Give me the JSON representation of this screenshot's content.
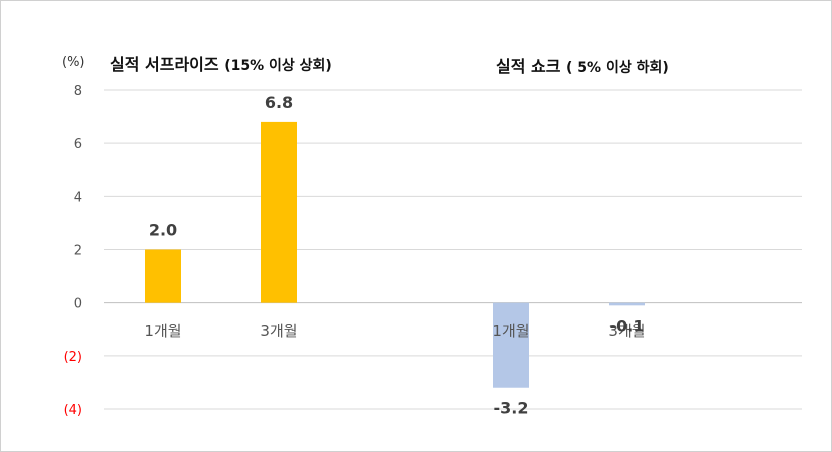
{
  "chart_data": {
    "type": "bar",
    "unit_label": "(%)",
    "ylim": [
      -4,
      8
    ],
    "yticks": [
      {
        "value": 8,
        "label": "8",
        "color": "#555555"
      },
      {
        "value": 6,
        "label": "6",
        "color": "#555555"
      },
      {
        "value": 4,
        "label": "4",
        "color": "#555555"
      },
      {
        "value": 2,
        "label": "2",
        "color": "#555555"
      },
      {
        "value": 0,
        "label": "0",
        "color": "#555555"
      },
      {
        "value": -2,
        "label": "(2)",
        "color": "#ff0000"
      },
      {
        "value": -4,
        "label": "(4)",
        "color": "#ff0000"
      }
    ],
    "grid": true,
    "panels": [
      {
        "title_main": "실적 서프라이즈 ",
        "title_detail": "(15% 이상 상회)",
        "color": "#ffc000",
        "categories": [
          "1개월",
          "3개월"
        ],
        "values": [
          2.0,
          6.8
        ],
        "labels": [
          "2.0",
          "6.8"
        ]
      },
      {
        "title_main": "실적 쇼크 ",
        "title_detail": "( 5% 이상 하회)",
        "color": "#b4c7e7",
        "line_color": "#4472c4",
        "categories": [
          "1개월",
          "3개월"
        ],
        "values": [
          -3.2,
          -0.1
        ],
        "labels": [
          "-3.2",
          "-0.1"
        ]
      }
    ]
  }
}
